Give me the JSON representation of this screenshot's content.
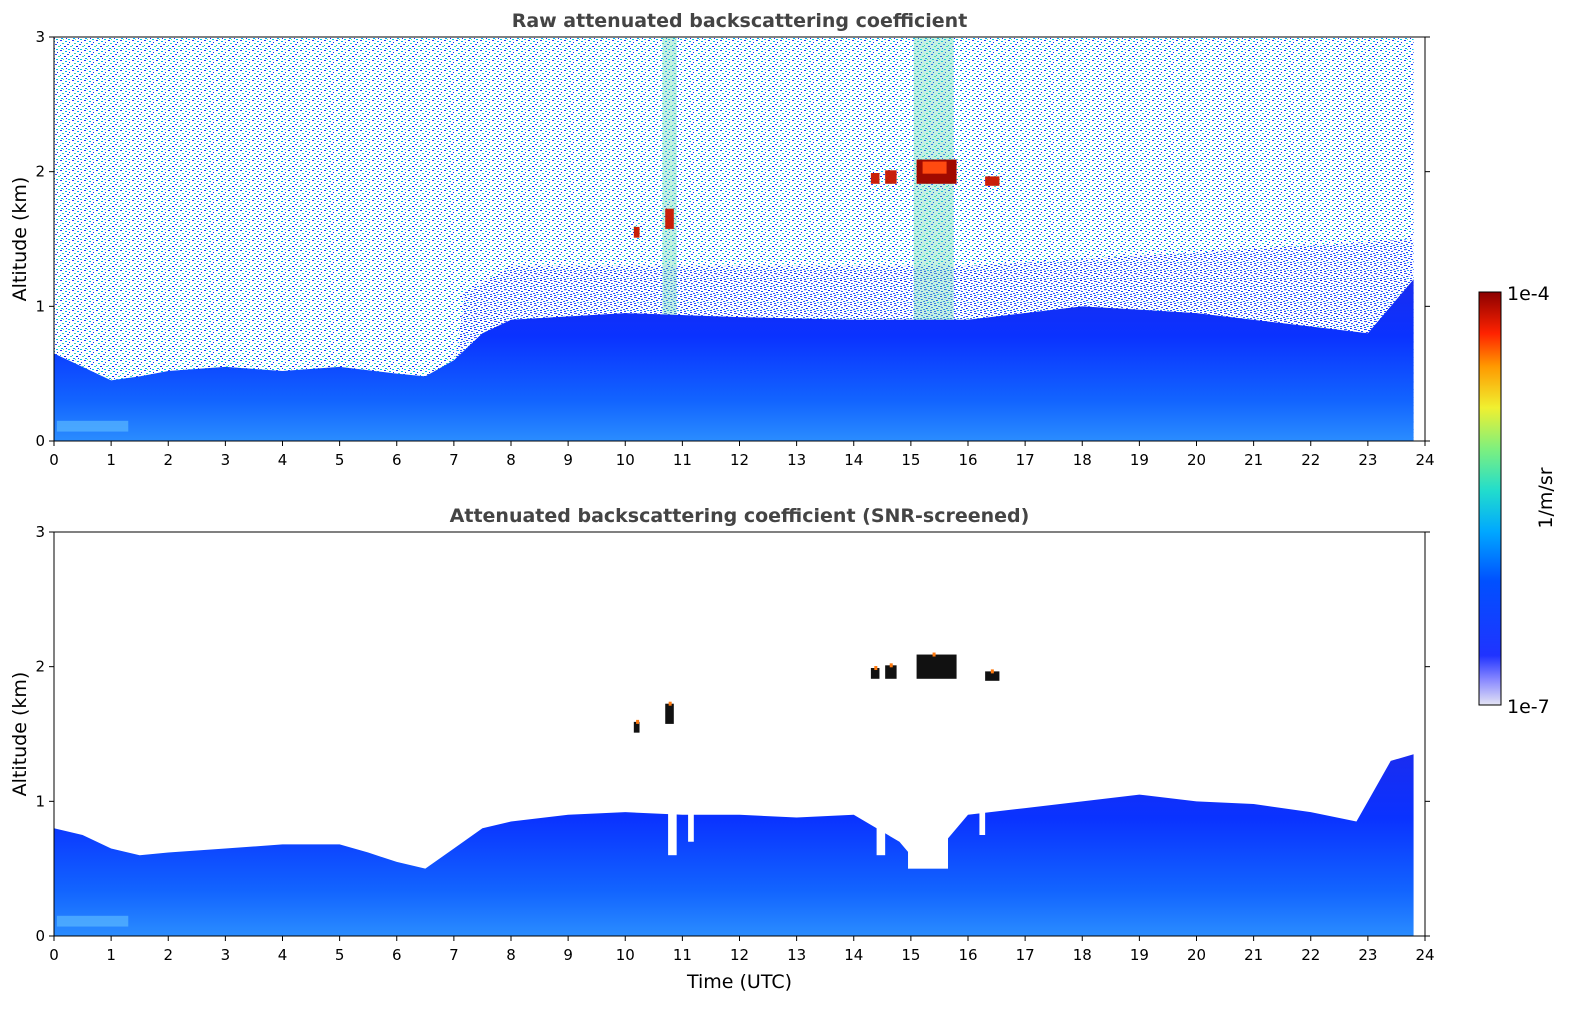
{
  "chart_data": [
    {
      "type": "heatmap",
      "title": "Raw attenuated backscattering coefficient",
      "xlabel": "",
      "ylabel": "Altitude (km)",
      "xlim": [
        0,
        24
      ],
      "ylim": [
        0,
        3
      ],
      "x_ticks": [
        "0",
        "1",
        "2",
        "3",
        "4",
        "5",
        "6",
        "7",
        "8",
        "9",
        "10",
        "11",
        "12",
        "13",
        "14",
        "15",
        "16",
        "17",
        "18",
        "19",
        "20",
        "21",
        "22",
        "23",
        "24"
      ],
      "y_ticks": [
        "0",
        "1",
        "2",
        "3"
      ],
      "data_end_time": 23.8,
      "boundary_layer_top_km": [
        [
          0.0,
          0.65
        ],
        [
          0.5,
          0.55
        ],
        [
          1.0,
          0.45
        ],
        [
          1.5,
          0.48
        ],
        [
          2.0,
          0.52
        ],
        [
          3.0,
          0.55
        ],
        [
          4.0,
          0.52
        ],
        [
          5.0,
          0.55
        ],
        [
          6.0,
          0.5
        ],
        [
          6.5,
          0.48
        ],
        [
          7.0,
          0.6
        ],
        [
          7.5,
          0.8
        ],
        [
          8.0,
          0.9
        ],
        [
          10.0,
          0.95
        ],
        [
          12.0,
          0.92
        ],
        [
          14.0,
          0.9
        ],
        [
          16.0,
          0.9
        ],
        [
          18.0,
          1.0
        ],
        [
          20.0,
          0.95
        ],
        [
          22.0,
          0.85
        ],
        [
          23.0,
          0.8
        ],
        [
          23.8,
          1.2
        ]
      ],
      "cloud_layers": [
        {
          "t_start": 10.15,
          "t_end": 10.25,
          "alt_km": 1.55,
          "depth_km": 0.08,
          "level": "high"
        },
        {
          "t_start": 10.7,
          "t_end": 10.85,
          "alt_km": 1.65,
          "depth_km": 0.15,
          "level": "high"
        },
        {
          "t_start": 14.3,
          "t_end": 14.45,
          "alt_km": 1.95,
          "depth_km": 0.08,
          "level": "high"
        },
        {
          "t_start": 14.55,
          "t_end": 14.75,
          "alt_km": 1.96,
          "depth_km": 0.1,
          "level": "high"
        },
        {
          "t_start": 15.1,
          "t_end": 15.8,
          "alt_km": 2.0,
          "depth_km": 0.18,
          "level": "max"
        },
        {
          "t_start": 16.3,
          "t_end": 16.55,
          "alt_km": 1.93,
          "depth_km": 0.07,
          "level": "high"
        }
      ],
      "noise_columns": [
        {
          "t_start": 10.65,
          "t_end": 10.9
        },
        {
          "t_start": 15.05,
          "t_end": 15.75
        }
      ]
    },
    {
      "type": "heatmap",
      "title": "Attenuated backscattering coefficient (SNR-screened)",
      "xlabel": "Time (UTC)",
      "ylabel": "Altitude (km)",
      "xlim": [
        0,
        24
      ],
      "ylim": [
        0,
        3
      ],
      "x_ticks": [
        "0",
        "1",
        "2",
        "3",
        "4",
        "5",
        "6",
        "7",
        "8",
        "9",
        "10",
        "11",
        "12",
        "13",
        "14",
        "15",
        "16",
        "17",
        "18",
        "19",
        "20",
        "21",
        "22",
        "23",
        "24"
      ],
      "y_ticks": [
        "0",
        "1",
        "2",
        "3"
      ],
      "data_end_time": 23.8,
      "screened_top_km": [
        [
          0.0,
          0.8
        ],
        [
          0.5,
          0.75
        ],
        [
          1.0,
          0.65
        ],
        [
          1.5,
          0.6
        ],
        [
          2.0,
          0.62
        ],
        [
          3.0,
          0.65
        ],
        [
          4.0,
          0.68
        ],
        [
          5.0,
          0.68
        ],
        [
          5.5,
          0.62
        ],
        [
          6.0,
          0.55
        ],
        [
          6.5,
          0.5
        ],
        [
          7.0,
          0.65
        ],
        [
          7.5,
          0.8
        ],
        [
          8.0,
          0.85
        ],
        [
          9.0,
          0.9
        ],
        [
          10.0,
          0.92
        ],
        [
          11.0,
          0.9
        ],
        [
          12.0,
          0.9
        ],
        [
          13.0,
          0.88
        ],
        [
          14.0,
          0.9
        ],
        [
          14.8,
          0.7
        ],
        [
          15.0,
          0.6
        ],
        [
          15.5,
          0.65
        ],
        [
          15.8,
          0.8
        ],
        [
          16.0,
          0.9
        ],
        [
          17.0,
          0.95
        ],
        [
          18.0,
          1.0
        ],
        [
          19.0,
          1.05
        ],
        [
          20.0,
          1.0
        ],
        [
          21.0,
          0.98
        ],
        [
          22.0,
          0.92
        ],
        [
          22.8,
          0.85
        ],
        [
          23.0,
          1.0
        ],
        [
          23.4,
          1.3
        ],
        [
          23.8,
          1.35
        ]
      ],
      "gaps": [
        {
          "t_start": 10.75,
          "t_end": 10.9,
          "bottom_km": 0.6
        },
        {
          "t_start": 11.1,
          "t_end": 11.2,
          "bottom_km": 0.7
        },
        {
          "t_start": 14.4,
          "t_end": 14.55,
          "bottom_km": 0.6
        },
        {
          "t_start": 14.95,
          "t_end": 15.65,
          "bottom_km": 0.5
        },
        {
          "t_start": 16.2,
          "t_end": 16.3,
          "bottom_km": 0.75
        }
      ],
      "cloud_layers": [
        {
          "t_start": 10.15,
          "t_end": 10.25,
          "alt_km": 1.55,
          "depth_km": 0.08,
          "level": "black"
        },
        {
          "t_start": 10.7,
          "t_end": 10.85,
          "alt_km": 1.65,
          "depth_km": 0.15,
          "level": "black"
        },
        {
          "t_start": 14.3,
          "t_end": 14.45,
          "alt_km": 1.95,
          "depth_km": 0.08,
          "level": "black"
        },
        {
          "t_start": 14.55,
          "t_end": 14.75,
          "alt_km": 1.96,
          "depth_km": 0.1,
          "level": "black"
        },
        {
          "t_start": 15.1,
          "t_end": 15.8,
          "alt_km": 2.0,
          "depth_km": 0.18,
          "level": "black"
        },
        {
          "t_start": 16.3,
          "t_end": 16.55,
          "alt_km": 1.93,
          "depth_km": 0.07,
          "level": "black"
        }
      ]
    }
  ],
  "colorbar": {
    "label": "1/m/sr",
    "max_label": "1e-4",
    "min_label": "1e-7",
    "scale": "log",
    "colors": [
      "#e4e4f4",
      "#2033ff",
      "#0050ff",
      "#00a8ff",
      "#22ddcc",
      "#7ef07e",
      "#f0f030",
      "#ff9900",
      "#ff2200",
      "#8b0000"
    ]
  }
}
